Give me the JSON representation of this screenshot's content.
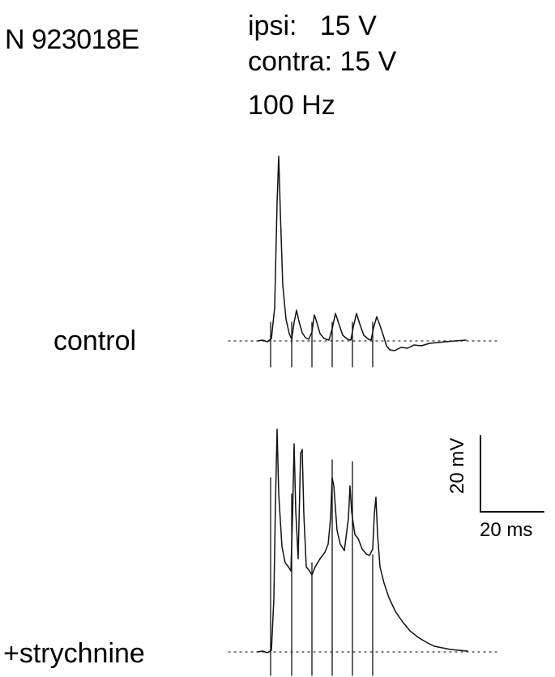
{
  "header": {
    "cell_id": "N 923018E",
    "ipsi": "ipsi:   15 V",
    "contra": "contra: 15 V",
    "frequency": "100 Hz"
  },
  "chart_data": {
    "type": "line",
    "title": "",
    "xlabel": "",
    "ylabel": "",
    "stimulus": {
      "ipsi_V": 15,
      "contra_V": 15,
      "frequency_Hz": 100,
      "pulse_count": 6
    },
    "scale_bar": {
      "y_label": "20 mV",
      "y_mV": 20,
      "x_label": "20 ms",
      "x_ms": 20
    },
    "series": [
      {
        "name": "control",
        "spike_peaks_mV": [
          57,
          14,
          12,
          13,
          12,
          12
        ],
        "late_hyperpolarization_mV": -2.5
      },
      {
        "name": "+strychnine",
        "spike_peaks_mV": [
          57,
          52,
          46,
          44,
          37
        ],
        "plateau_mV": 22,
        "decay_ms": 20
      }
    ],
    "grid": false,
    "legend": "none"
  },
  "colors": {
    "trace": "#111111",
    "baseline": "#333333",
    "background": "#ffffff"
  }
}
